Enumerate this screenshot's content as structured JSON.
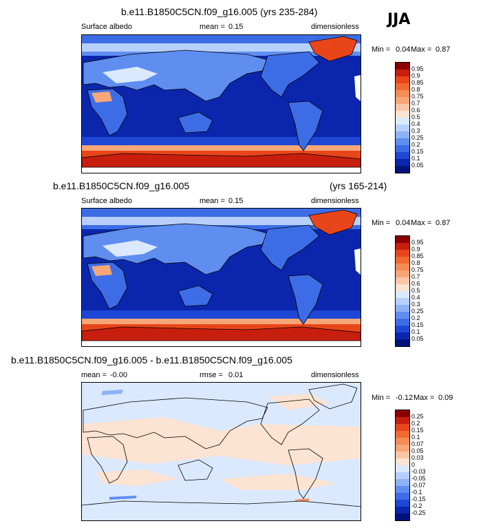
{
  "season": "JJA",
  "panels": [
    {
      "title": "b.e11.B1850C5CN.f09_g16.005 (yrs 235-284)",
      "title_right": "",
      "variable": "Surface albedo",
      "stat_label": "mean =",
      "stat_value": "0.15",
      "units": "dimensionless",
      "min_label": "Min =",
      "min_value": "0.04",
      "max_label": "Max =",
      "max_value": "0.87",
      "levels": [
        "0.95",
        "0.9",
        "0.85",
        "0.8",
        "0.75",
        "0.7",
        "0.6",
        "0.5",
        "0.4",
        "0.3",
        "0.25",
        "0.2",
        "0.15",
        "0.1",
        "0.05"
      ],
      "colors": [
        "#8b0000",
        "#c81e0e",
        "#e8461a",
        "#f06a33",
        "#f58c55",
        "#f7a678",
        "#f9c6a8",
        "#fde3d1",
        "#dbe9ff",
        "#b7d0fb",
        "#8db2f5",
        "#5f8ef0",
        "#3d6de6",
        "#1d47d4",
        "#0b26ad",
        "#00127a"
      ]
    },
    {
      "title": "b.e11.B1850C5CN.f09_g16.005",
      "title_right": "(yrs 165-214)",
      "variable": "Surface albedo",
      "stat_label": "mean =",
      "stat_value": "0.15",
      "units": "dimensionless",
      "min_label": "Min =",
      "min_value": "0.04",
      "max_label": "Max =",
      "max_value": "0.87",
      "levels": [
        "0.95",
        "0.9",
        "0.85",
        "0.8",
        "0.75",
        "0.7",
        "0.6",
        "0.5",
        "0.4",
        "0.3",
        "0.25",
        "0.2",
        "0.15",
        "0.1",
        "0.05"
      ],
      "colors": [
        "#8b0000",
        "#c81e0e",
        "#e8461a",
        "#f06a33",
        "#f58c55",
        "#f7a678",
        "#f9c6a8",
        "#fde3d1",
        "#dbe9ff",
        "#b7d0fb",
        "#8db2f5",
        "#5f8ef0",
        "#3d6de6",
        "#1d47d4",
        "#0b26ad",
        "#00127a"
      ]
    },
    {
      "title": "b.e11.B1850C5CN.f09_g16.005 - b.e11.B1850C5CN.f09_g16.005",
      "title_right": "",
      "variable": "mean =",
      "stat_label": "rmse =",
      "stat_value": "0.01",
      "mean_value": "-0.00",
      "units": "dimensionless",
      "min_label": "Min =",
      "min_value": "-0.12",
      "max_label": "Max =",
      "max_value": "0.09",
      "levels": [
        "0.25",
        "0.2",
        "0.15",
        "0.1",
        "0.07",
        "0.05",
        "0.03",
        "0",
        "-0.03",
        "-0.05",
        "-0.07",
        "-0.1",
        "-0.15",
        "-0.2",
        "-0.25"
      ],
      "colors": [
        "#8b0000",
        "#c81e0e",
        "#e8461a",
        "#f06a33",
        "#f58c55",
        "#f7a678",
        "#f9c6a8",
        "#fde3d1",
        "#dbe9ff",
        "#b7d0fb",
        "#8db2f5",
        "#5f8ef0",
        "#3d6de6",
        "#1d47d4",
        "#0b26ad",
        "#00127a"
      ]
    }
  ]
}
